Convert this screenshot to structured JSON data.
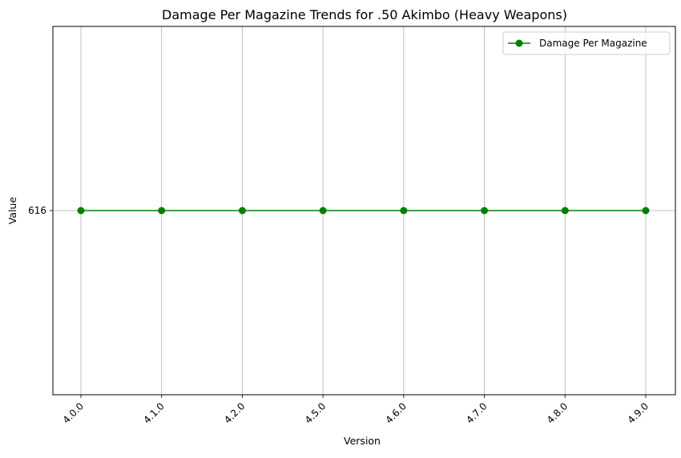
{
  "chart_data": {
    "type": "line",
    "title": "Damage Per Magazine Trends for .50 Akimbo (Heavy Weapons)",
    "xlabel": "Version",
    "ylabel": "Value",
    "categories": [
      "4.0.0",
      "4.1.0",
      "4.2.0",
      "4.5.0",
      "4.6.0",
      "4.7.0",
      "4.8.0",
      "4.9.0"
    ],
    "series": [
      {
        "name": "Damage Per Magazine",
        "values": [
          616,
          616,
          616,
          616,
          616,
          616,
          616,
          616
        ],
        "color": "#008000",
        "marker": "circle"
      }
    ],
    "y_ticks": [
      616
    ],
    "ylim": [
      615.945,
      616.055
    ],
    "grid": true,
    "legend_position": "top-right",
    "x_tick_rotation": 45
  }
}
